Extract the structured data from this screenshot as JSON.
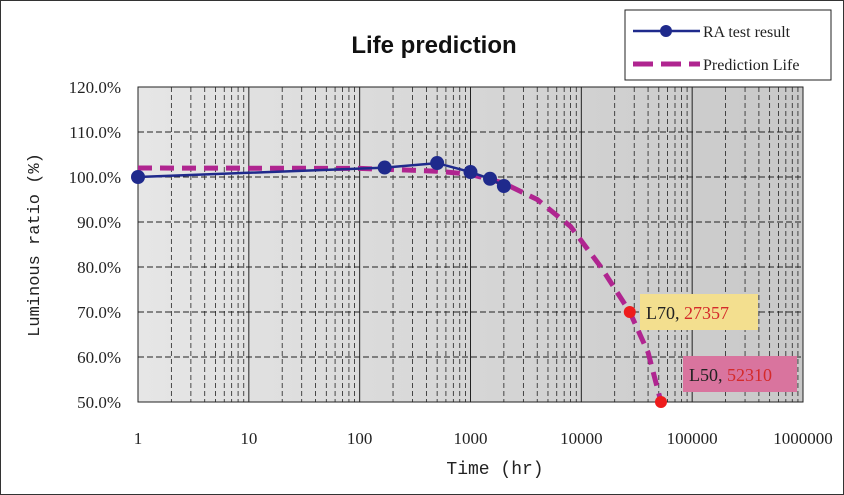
{
  "chart_data": {
    "type": "line",
    "title": "Life prediction",
    "xlabel": "Time (hr)",
    "ylabel": "Luminous ratio (%)",
    "x_scale": "log",
    "xlim": [
      1,
      1000000
    ],
    "ylim": [
      50,
      120
    ],
    "x_ticks": [
      "1",
      "10",
      "100",
      "1000",
      "10000",
      "100000",
      "1000000"
    ],
    "y_ticks": [
      "120.0%",
      "110.0%",
      "100.0%",
      "90.0%",
      "80.0%",
      "70.0%",
      "60.0%",
      "50.0%"
    ],
    "grid": true,
    "legend_position": "top-right",
    "series": [
      {
        "name": "RA test result",
        "color": "#1f2a8c",
        "style": "solid-with-markers",
        "x": [
          1,
          168,
          500,
          1000,
          1500,
          2000
        ],
        "y": [
          100.0,
          102.1,
          103.1,
          101.1,
          99.6,
          98.0
        ]
      },
      {
        "name": "Prediction Life",
        "color": "#b02590",
        "style": "dashed",
        "x": [
          1,
          100,
          500,
          1000,
          2000,
          4000,
          8000,
          15000,
          27357,
          40000,
          52310
        ],
        "y": [
          102.0,
          101.9,
          101.3,
          100.6,
          98.6,
          95.0,
          89.0,
          80.0,
          70.0,
          61.0,
          50.0
        ]
      }
    ],
    "annotations": [
      {
        "prefix": "L70, ",
        "value": "27357",
        "x": 27357,
        "y": 70,
        "box_color": "#f3df8f"
      },
      {
        "prefix": "L50, ",
        "value": "52310",
        "x": 52310,
        "y": 50,
        "box_color": "#d9749e"
      }
    ]
  }
}
